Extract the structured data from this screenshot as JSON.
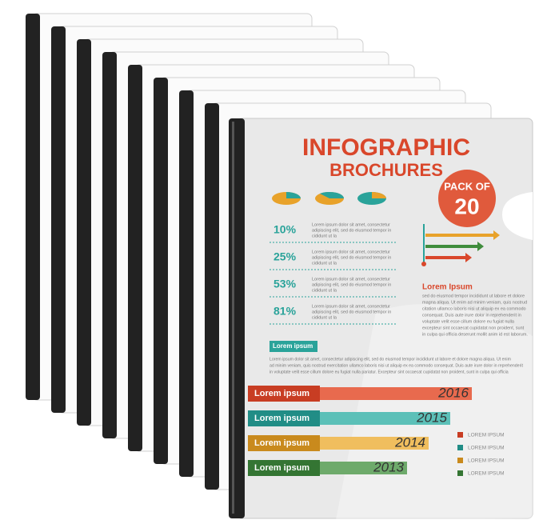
{
  "brochure": {
    "title_line1": "INFOGRAPHIC",
    "title_line2": "BROCHURES",
    "badge": {
      "line1": "PACK OF",
      "line2": "20"
    },
    "stats": [
      {
        "value": "10%",
        "lines": [
          "Lorem ipsum dolor sit amet, consectetur",
          "adipiscing elit, sed do eiusmod tempor in",
          "cididunt ut la"
        ]
      },
      {
        "value": "25%",
        "lines": [
          "Lorem ipsum dolor sit amet, consectetur",
          "adipiscing elit, sed do eiusmod tempor in",
          "cididunt ut la"
        ]
      },
      {
        "value": "53%",
        "lines": [
          "Lorem ipsum dolor sit amet, consectetur",
          "adipiscing elit, sed do eiusmod tempor in",
          "cididunt ut la"
        ]
      },
      {
        "value": "81%",
        "lines": [
          "Lorem ipsum dolor sit amet, consectetur",
          "adipiscing elit, sed do eiusmod tempor in",
          "cididunt ut la"
        ]
      }
    ],
    "callout_title": "Lorem Ipsum",
    "callout_lines": [
      "sed do eiusmod tempor incididunt ut labore et dolore",
      "magna aliqua. Ut enim ad minim veniam, quis nostrud",
      "citation ullamco laboris nisi ut aliquip ex ea commodo",
      "consequat. Duis aute irure dolor in reprehenderit in",
      "voluptate velit esse cillum dolore eu fugiat nulla",
      "excepteur sint occaecat cupidatat non proident, sunt",
      "in culpa qui officia deserunt mollit anim id est laborum."
    ],
    "section_label": "Lorem ipsum",
    "body_lines": [
      "Lorem ipsum dolor sit amet, consectetur adipiscing elit, sed do eiusmod tempor incididunt ut labore et dolore magna aliqua. Ut enim",
      "ad minim veniam, quis nostrud exercitation ullamco laboris nisi ut aliquip ex ea commodo consequat. Duis aute irure dolor in reprehenderit",
      "in voluptate velit esse cillum dolore eu fugiat nulla pariatur. Excepteur sint occaecat cupidatat non proident, sunt in culpa qui officia"
    ],
    "timeline": [
      {
        "label": "Lorem ipsum",
        "year": "2016"
      },
      {
        "label": "Lorem ipsum",
        "year": "2015"
      },
      {
        "label": "Lorem ipsum",
        "year": "2014"
      },
      {
        "label": "Lorem ipsum",
        "year": "2013"
      }
    ],
    "legend": [
      "LOREM IPSUM",
      "LOREM IPSUM",
      "LOREM IPSUM",
      "LOREM IPSUM"
    ]
  }
}
